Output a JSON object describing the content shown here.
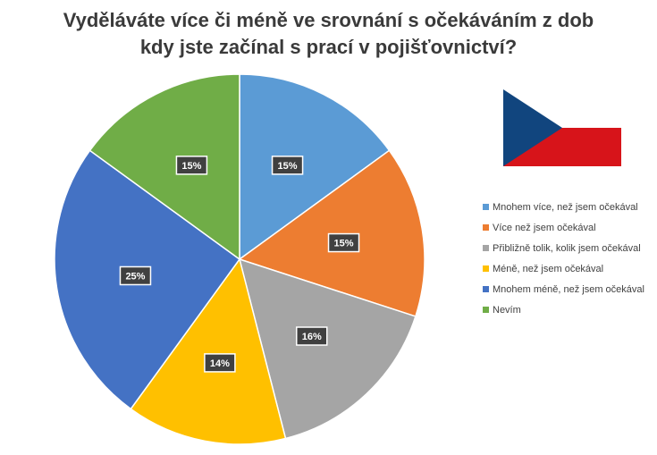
{
  "chart_data": {
    "type": "pie",
    "title_lines": [
      "Vyděláváte více či méně ve srovnání s očekáváním z dob",
      "kdy jste začínal s prací v pojišťovnictví?"
    ],
    "categories": [
      "Mnohem více, než jsem očekával",
      "Více než jsem očekával",
      "Přibližně tolik, kolik jsem očekával",
      "Méně, než jsem očekával",
      "Mnohem méně, než jsem očekával",
      "Nevím"
    ],
    "values": [
      15,
      15,
      16,
      14,
      25,
      15
    ],
    "data_labels": [
      "15%",
      "15%",
      "16%",
      "14%",
      "25%",
      "15%"
    ],
    "colors": [
      "#5b9bd5",
      "#ed7d31",
      "#a5a5a5",
      "#ffc000",
      "#4472c4",
      "#70ad47"
    ],
    "legend_position": "right"
  },
  "flag": {
    "name": "czech-flag",
    "colors": [
      "#ffffff",
      "#d7141a",
      "#11457e"
    ]
  }
}
